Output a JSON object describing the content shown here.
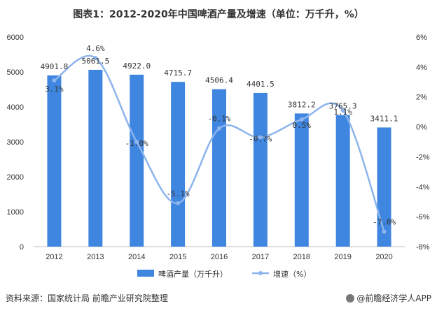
{
  "title": "图表1：2012-2020年中国啤酒产量及增速（单位：万千升，%）",
  "footer": {
    "source": "资料来源：国家统计局 前瞻产业研究院整理",
    "brand": "@前瞻经济学人APP"
  },
  "colors": {
    "bar": "#3f86e0",
    "line": "#8db4ec"
  },
  "chart_data": {
    "type": "bar",
    "categories": [
      "2012",
      "2013",
      "2014",
      "2015",
      "2016",
      "2017",
      "2018",
      "2019",
      "2020"
    ],
    "series": [
      {
        "name": "啤酒产量（万千升）",
        "type": "bar",
        "axis": "left",
        "values": [
          4901.8,
          5061.5,
          4922.0,
          4715.7,
          4506.4,
          4401.5,
          3812.2,
          3765.3,
          3411.1
        ],
        "labels": [
          "4901.8",
          "5061.5",
          "4922.0",
          "4715.7",
          "4506.4",
          "4401.5",
          "3812.2",
          "3765.3",
          "3411.1"
        ]
      },
      {
        "name": "增速（%）",
        "type": "line",
        "axis": "right",
        "values": [
          3.1,
          4.6,
          -1.0,
          -5.1,
          -0.1,
          -0.7,
          0.5,
          1.1,
          -7.0
        ],
        "labels": [
          "3.1%",
          "4.6%",
          "-1.0%",
          "-5.1%",
          "-0.1%",
          "-0.7%",
          "0.5%",
          "1.1%",
          "-7.0%"
        ]
      }
    ],
    "ylim_left": [
      0,
      6000
    ],
    "yticks_left": [
      "0",
      "1000",
      "2000",
      "3000",
      "4000",
      "5000",
      "6000"
    ],
    "ylim_right": [
      -8,
      6
    ],
    "yticks_right": [
      "6%",
      "4%",
      "2%",
      "0%",
      "-2%",
      "-4%",
      "-6%",
      "-8%"
    ],
    "legend_position": "bottom"
  }
}
